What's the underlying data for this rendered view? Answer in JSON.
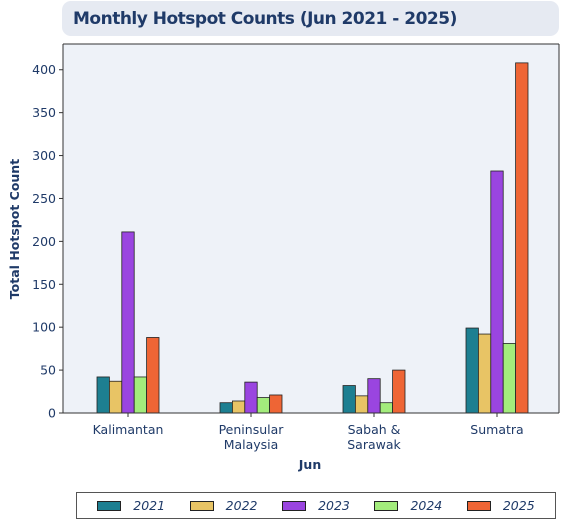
{
  "chart_data": {
    "type": "bar",
    "title": "Monthly Hotspot Counts (Jun 2021 - 2025)",
    "xlabel": "Jun",
    "ylabel": "Total Hotspot Count",
    "categories": [
      [
        "Kalimantan"
      ],
      [
        "Peninsular",
        "Malaysia"
      ],
      [
        "Sabah &",
        "Sarawak"
      ],
      [
        "Sumatra"
      ]
    ],
    "ylim": [
      0,
      430
    ],
    "yticks": [
      0,
      50,
      100,
      150,
      200,
      250,
      300,
      350,
      400
    ],
    "grid": false,
    "legend_position": "bottom",
    "series": [
      {
        "name": "2021",
        "color": "#1d7f91",
        "values": [
          42,
          12,
          32,
          99
        ]
      },
      {
        "name": "2022",
        "color": "#e8c465",
        "values": [
          37,
          14,
          20,
          92
        ]
      },
      {
        "name": "2023",
        "color": "#9a45e0",
        "values": [
          211,
          36,
          40,
          282
        ]
      },
      {
        "name": "2024",
        "color": "#a3ec7c",
        "values": [
          42,
          18,
          12,
          81
        ]
      },
      {
        "name": "2025",
        "color": "#ee6535",
        "values": [
          88,
          21,
          50,
          408
        ]
      }
    ]
  },
  "style": {
    "plot_background": "#eef2f8",
    "axis_color": "#333333",
    "text_color": "#1f3a68"
  }
}
